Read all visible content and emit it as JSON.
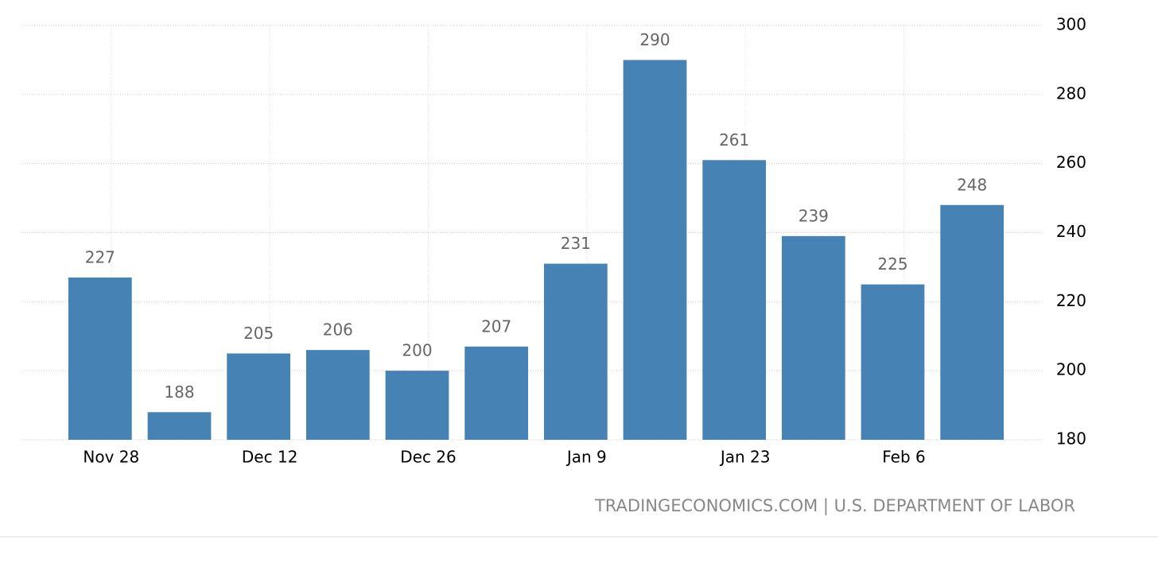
{
  "chart_data": {
    "type": "bar",
    "categories": [
      "Nov 28",
      null,
      "Dec 12",
      null,
      "Dec 26",
      null,
      "Jan 9",
      null,
      "Jan 23",
      null,
      "Feb 6",
      null
    ],
    "values": [
      227,
      188,
      205,
      206,
      200,
      207,
      231,
      290,
      261,
      239,
      225,
      248
    ],
    "color": "#4682b4",
    "ylim": [
      180,
      300
    ],
    "yticks": [
      180,
      200,
      220,
      240,
      260,
      280,
      300
    ],
    "grid": true,
    "source": "TRADINGECONOMICS.COM | U.S. DEPARTMENT OF LABOR"
  }
}
